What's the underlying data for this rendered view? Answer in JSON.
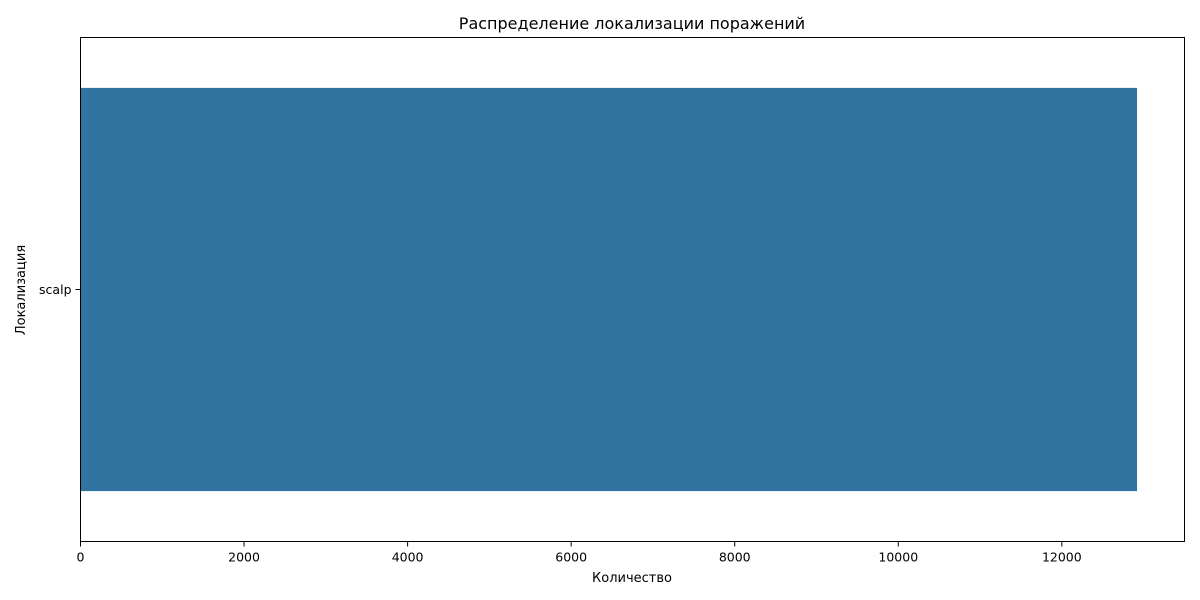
{
  "chart_data": {
    "type": "bar",
    "orientation": "horizontal",
    "title": "Распределение локализации поражений",
    "xlabel": "Количество",
    "ylabel": "Локализация",
    "categories": [
      "scalp"
    ],
    "values": [
      12920
    ],
    "xlim": [
      0,
      13500
    ],
    "xticks": [
      0,
      2000,
      4000,
      6000,
      8000,
      10000,
      12000
    ],
    "grid": false,
    "bar_color": "#3274a1"
  }
}
